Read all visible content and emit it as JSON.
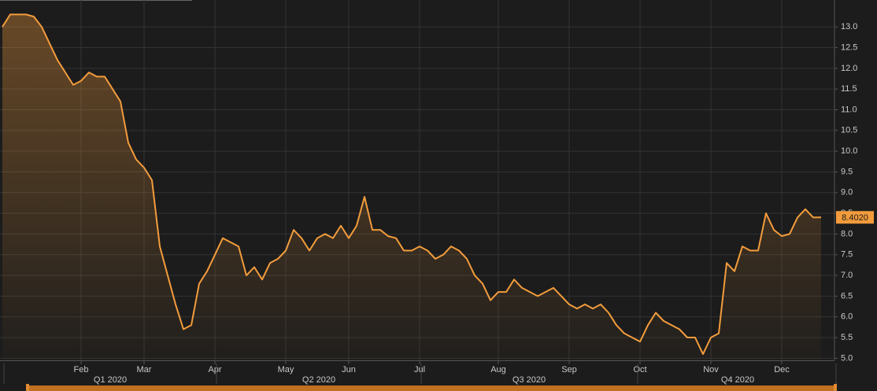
{
  "chart_data": {
    "type": "area-line",
    "categories": [
      null,
      null,
      null,
      null,
      null,
      null,
      null,
      null,
      null,
      null,
      "Feb",
      null,
      null,
      null,
      null,
      null,
      null,
      null,
      "Mar",
      null,
      null,
      null,
      null,
      null,
      null,
      null,
      null,
      "Apr",
      null,
      null,
      null,
      null,
      null,
      null,
      null,
      null,
      "May",
      null,
      null,
      null,
      null,
      null,
      null,
      null,
      "Jun",
      null,
      null,
      null,
      null,
      null,
      null,
      null,
      null,
      "Jul",
      null,
      null,
      null,
      null,
      null,
      null,
      null,
      null,
      null,
      "Aug",
      null,
      null,
      null,
      null,
      null,
      null,
      null,
      null,
      "Sep",
      null,
      null,
      null,
      null,
      null,
      null,
      null,
      null,
      "Oct",
      null,
      null,
      null,
      null,
      null,
      null,
      null,
      null,
      "Nov",
      null,
      null,
      null,
      null,
      null,
      null,
      null,
      null,
      "Dec",
      null,
      null,
      null,
      null,
      null
    ],
    "values": [
      13.0,
      13.3,
      13.3,
      13.3,
      13.25,
      13.0,
      12.6,
      12.2,
      11.9,
      11.6,
      11.7,
      11.9,
      11.8,
      11.8,
      11.5,
      11.2,
      10.2,
      9.8,
      9.6,
      9.3,
      7.7,
      7.0,
      6.3,
      5.7,
      5.8,
      6.8,
      7.1,
      7.5,
      7.9,
      7.8,
      7.7,
      7.0,
      7.2,
      6.9,
      7.3,
      7.4,
      7.6,
      8.1,
      7.9,
      7.6,
      7.9,
      8.0,
      7.9,
      8.2,
      7.9,
      8.2,
      8.9,
      8.1,
      8.1,
      7.95,
      7.9,
      7.6,
      7.6,
      7.7,
      7.6,
      7.4,
      7.5,
      7.7,
      7.6,
      7.4,
      7.0,
      6.8,
      6.4,
      6.6,
      6.6,
      6.9,
      6.7,
      6.6,
      6.5,
      6.6,
      6.7,
      6.5,
      6.3,
      6.2,
      6.3,
      6.2,
      6.3,
      6.1,
      5.8,
      5.6,
      5.5,
      5.4,
      5.8,
      6.1,
      5.9,
      5.8,
      5.7,
      5.5,
      5.5,
      5.1,
      5.5,
      5.6,
      7.3,
      7.1,
      7.7,
      7.6,
      7.6,
      8.5,
      8.1,
      7.95,
      8.0,
      8.4,
      8.6,
      8.4,
      8.402
    ],
    "color": "#f39c3c",
    "current_value": {
      "value": 8.402,
      "label": "8.4020"
    },
    "quarters": [
      "Q1 2020",
      "Q2 2020",
      "Q3 2020",
      "Q4 2020"
    ],
    "ylim": [
      4.95,
      13.65
    ],
    "yticks": [
      {
        "value": 5,
        "label": "5.0"
      },
      5.5,
      {
        "value": 6,
        "label": "6.0"
      },
      6.5,
      {
        "value": 7,
        "label": "7.0"
      },
      7.5,
      {
        "value": 8,
        "label": "8.0"
      },
      8.5,
      {
        "value": 9,
        "label": "9.0"
      },
      9.5,
      {
        "value": 10,
        "label": "10.0"
      },
      10.5,
      {
        "value": 11,
        "label": "11.0"
      },
      11.5,
      {
        "value": 12,
        "label": "12.0"
      },
      12.5,
      {
        "value": 13,
        "label": "13.0"
      }
    ],
    "grid": true
  }
}
